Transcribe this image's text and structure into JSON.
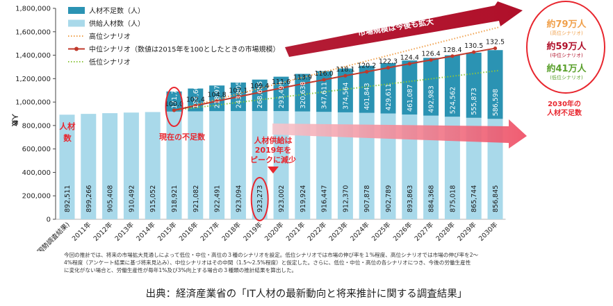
{
  "chart_data": {
    "type": "bar",
    "ylabel": "人数",
    "ylim": [
      0,
      1800000
    ],
    "yticks": [
      "0",
      "200,000",
      "400,000",
      "600,000",
      "800,000",
      "1,000,000",
      "1,200,000",
      "1,400,000",
      "1,600,000",
      "1,800,000"
    ],
    "categories": [
      "2010年(国勢調査結果)",
      "2011年",
      "2012年",
      "2013年",
      "2014年",
      "2015年",
      "2016年",
      "2017年",
      "2018年",
      "2019年",
      "2020年",
      "2021年",
      "2022年",
      "2023年",
      "2024年",
      "2025年",
      "2026年",
      "2027年",
      "2028年",
      "2029年",
      "2030年"
    ],
    "supply_values": [
      892511,
      899266,
      905408,
      910492,
      915052,
      918921,
      921082,
      922491,
      923094,
      923273,
      923002,
      919924,
      916447,
      912370,
      907878,
      902789,
      893863,
      884368,
      875018,
      865744,
      856845
    ],
    "supply_labels": [
      "892,511",
      "899,266",
      "905,408",
      "910,492",
      "915,052",
      "918,921",
      "921,082",
      "922,491",
      "923,094",
      "923,273",
      "923,002",
      "919,924",
      "916,447",
      "912,370",
      "907,878",
      "902,789",
      "893,863",
      "884,368",
      "875,018",
      "865,744",
      "856,845"
    ],
    "shortage_values": [
      null,
      null,
      null,
      null,
      null,
      171700,
      194608,
      218976,
      243805,
      268655,
      293499,
      320638,
      347611,
      374564,
      401843,
      429611,
      461087,
      492983,
      524562,
      555873,
      586598
    ],
    "shortage_labels": [
      "",
      "",
      "",
      "",
      "",
      "171,700",
      "194,608",
      "218,976",
      "243,805",
      "268,655",
      "293,499",
      "320,638",
      "347,611",
      "374,564",
      "401,843",
      "429,611",
      "461,087",
      "492,983",
      "524,562",
      "555,873",
      "586,598"
    ],
    "index_values": [
      null,
      null,
      null,
      null,
      null,
      100.0,
      102.4,
      104.8,
      107.1,
      109.4,
      111.6,
      113.9,
      116.0,
      118.1,
      120.2,
      122.3,
      124.4,
      126.4,
      128.4,
      130.5,
      132.5
    ],
    "index_labels": [
      "",
      "",
      "",
      "",
      "",
      "100.0",
      "102.4",
      "104.8",
      "107.1",
      "109.4",
      "111.6",
      "113.9",
      "116.0",
      "118.1",
      "120.2",
      "122.3",
      "124.4",
      "126.4",
      "128.4",
      "130.5",
      "132.5"
    ],
    "high_scenario_2030": 1640000,
    "low_scenario_2030": 1270000,
    "legend": [
      {
        "label": "人材不足数（人）",
        "kind": "bar-dark"
      },
      {
        "label": "供給人材数（人）",
        "kind": "bar-light"
      },
      {
        "label": "高位シナリオ",
        "kind": "line-orange-dotted"
      },
      {
        "label": "中位シナリオ（数値は2015年を100としたときの市場規模）",
        "kind": "line-red-marker"
      },
      {
        "label": "低位シナリオ",
        "kind": "line-green-dotted"
      }
    ],
    "legend_position": "top-left",
    "grid": false,
    "annotations": {
      "arrow_top": [
        "ITニーズの拡大により",
        "市場規模は今後も拡大"
      ],
      "left_label": [
        "人材",
        "数"
      ],
      "current_shortage": "現在の不足数",
      "supply_peak": [
        "人材供給は",
        "2019年を",
        "ピークに減少"
      ],
      "shortage_2030": [
        "2030年の",
        "人材不足数"
      ],
      "high_amount": "約79万人",
      "high_sub": "(高位シナリオ)",
      "mid_amount": "約59万人",
      "mid_sub": "(中位シナリオ)",
      "low_amount": "約41万人",
      "low_sub": "(低位シナリオ)"
    }
  },
  "note_lines": [
    "今回の推計では、将来の市場拡大見通しによって低位・中位・高位の３種のシナリオを設定。低位シナリオでは市場の伸び率を１%程度、高位シナリオでは市場の伸び率を2～",
    "4%程度（アンケート結果に基づ将来見込み）、中位シナリオはその中間（1.5～2.5%程度）と仮定した。さらに、低位・中位・高位の各シナリオにつき、今後の労働生産性",
    "に変化がない場合と、労働生産性が毎年1%及び3%向上する場合の３種類の推計結果を算出した。"
  ],
  "source": "出典：経済産業省の「IT人材の最新動向と将来推計に関する調査結果」",
  "colors": {
    "supply": "#a9d9ea",
    "shortage": "#2b93b3",
    "mid_line": "#c0392b",
    "high_line": "#f0a04b",
    "low_line": "#8cc63f",
    "highlight": "#e8262e",
    "arrow_dark": "#b0102a"
  }
}
